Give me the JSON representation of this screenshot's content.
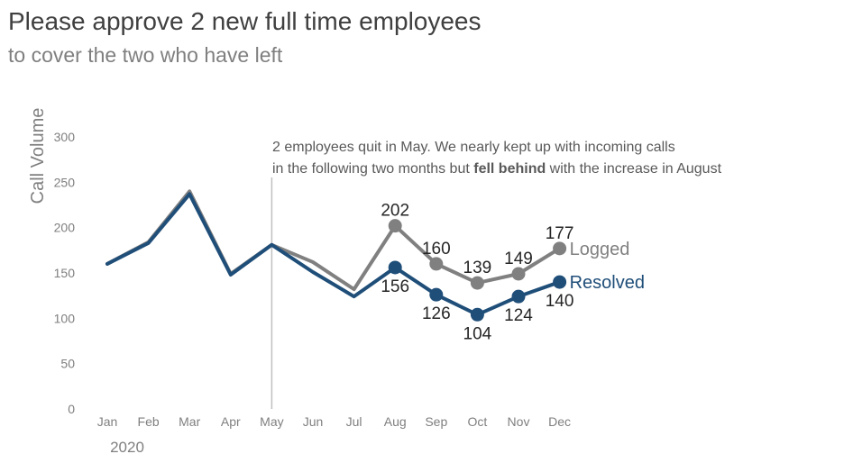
{
  "title": "Please approve 2 new full time employees",
  "subtitle": "to cover the two who have left",
  "colors": {
    "logged": "#808080",
    "resolved": "#1f4e79",
    "axis_text": "#7f7f7f",
    "annotation_line": "#bfbfbf"
  },
  "annotation": {
    "line1": "2 employees quit in May. We nearly kept up with incoming calls",
    "line2_before": "in the following two months but ",
    "line2_bold": "fell behind",
    "line2_after": " with the increase in August"
  },
  "chart_data": {
    "type": "line",
    "categories": [
      "Jan",
      "Feb",
      "Mar",
      "Apr",
      "May",
      "Jun",
      "Jul",
      "Aug",
      "Sep",
      "Oct",
      "Nov",
      "Dec"
    ],
    "year_label": "2020",
    "ylabel": "Call Volume",
    "ylim": [
      0,
      300
    ],
    "yticks": [
      0,
      50,
      100,
      150,
      200,
      250,
      300
    ],
    "grid": false,
    "annotation_category": "May",
    "series": [
      {
        "name": "Logged",
        "key": "logged",
        "values": [
          160,
          184,
          240,
          149,
          181,
          162,
          132,
          202,
          160,
          139,
          149,
          177
        ],
        "marker_from_index": 7,
        "label_position": "above"
      },
      {
        "name": "Resolved",
        "key": "resolved",
        "values": [
          160,
          183,
          237,
          148,
          181,
          151,
          124,
          156,
          126,
          104,
          124,
          140
        ],
        "marker_from_index": 7,
        "label_position": "below"
      }
    ]
  }
}
